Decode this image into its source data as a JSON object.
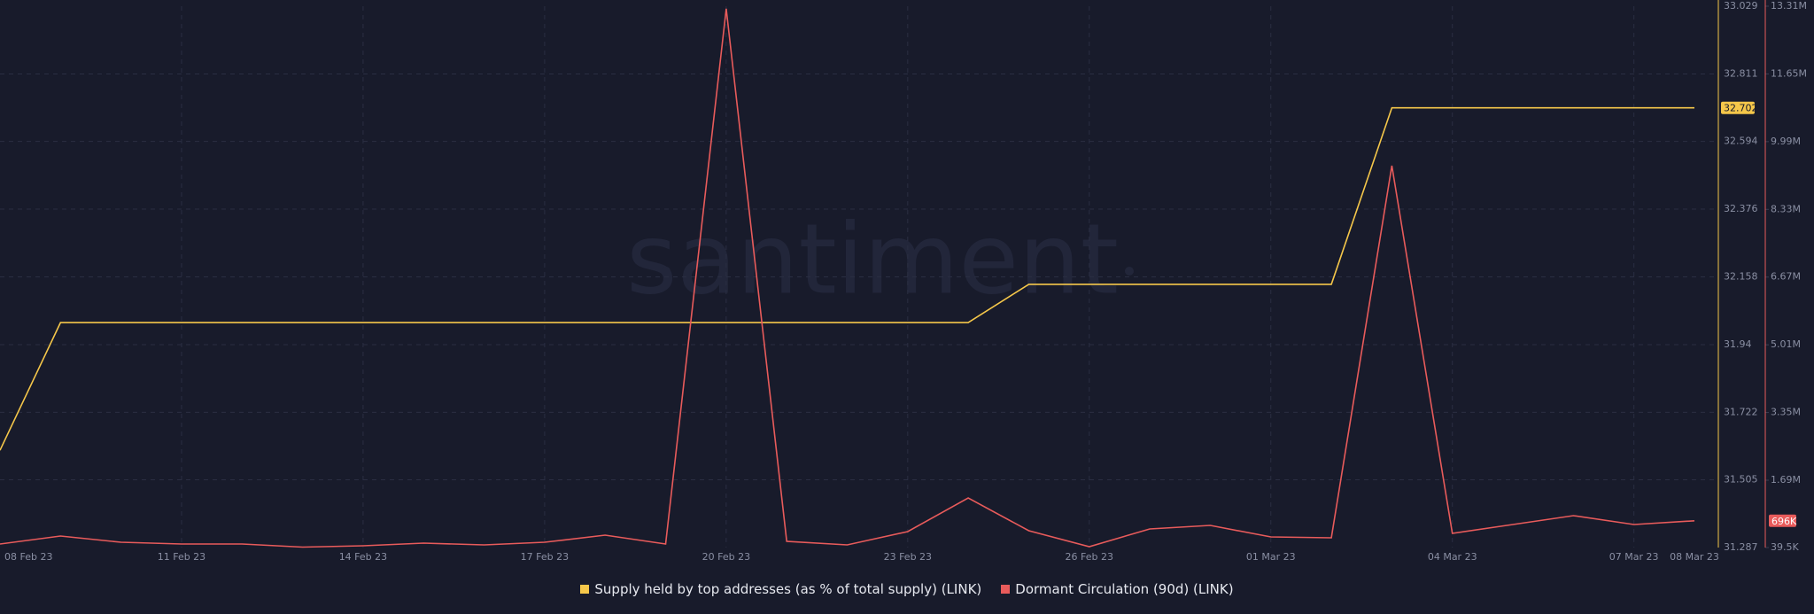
{
  "chart_data": {
    "type": "line",
    "watermark": "santiment",
    "categories": [
      "08 Feb 23",
      null,
      null,
      "11 Feb 23",
      null,
      null,
      "14 Feb 23",
      null,
      null,
      "17 Feb 23",
      null,
      null,
      "20 Feb 23",
      null,
      null,
      "23 Feb 23",
      null,
      null,
      "26 Feb 23",
      null,
      null,
      "01 Mar 23",
      null,
      null,
      "04 Mar 23",
      null,
      null,
      "07 Mar 23",
      "08 Mar 23"
    ],
    "series": [
      {
        "name": "Supply held by top addresses (as % of total supply) (LINK)",
        "color": "#f5c74a",
        "axis": "y",
        "values": [
          31.6,
          32.011,
          32.011,
          32.011,
          32.011,
          32.011,
          32.011,
          32.011,
          32.011,
          32.011,
          32.011,
          32.011,
          32.011,
          32.011,
          32.011,
          32.011,
          32.011,
          32.134,
          32.134,
          32.134,
          32.134,
          32.134,
          32.134,
          32.702,
          32.702,
          32.702,
          32.702,
          32.702,
          32.702
        ],
        "last_value_label": "32.702"
      },
      {
        "name": "Dormant Circulation (90d) (LINK)",
        "color": "#e85b5b",
        "axis": "y2",
        "values": [
          126000,
          322000,
          170000,
          126000,
          126000,
          50000,
          83000,
          148000,
          104000,
          170000,
          344000,
          126000,
          13250000,
          192000,
          104000,
          430000,
          1256000,
          452000,
          61000,
          496000,
          583000,
          300000,
          278000,
          9400000,
          387000,
          605000,
          821000,
          605000,
          696000
        ],
        "last_value_label": "696K"
      }
    ],
    "ylim": [
      31.287,
      33.029
    ],
    "yticks": [
      31.287,
      31.505,
      31.722,
      31.94,
      32.158,
      32.376,
      32.594,
      32.811,
      33.029
    ],
    "y2lim": [
      39500,
      13310000
    ],
    "y2ticks": [
      {
        "value": 39500,
        "label": "39.5K"
      },
      {
        "value": 1690000,
        "label": "1.69M"
      },
      {
        "value": 3350000,
        "label": "3.35M"
      },
      {
        "value": 5010000,
        "label": "5.01M"
      },
      {
        "value": 6670000,
        "label": "6.67M"
      },
      {
        "value": 8330000,
        "label": "8.33M"
      },
      {
        "value": 9990000,
        "label": "9.99M"
      },
      {
        "value": 11650000,
        "label": "11.65M"
      },
      {
        "value": 13310000,
        "label": "13.31M"
      }
    ],
    "grid": true
  }
}
